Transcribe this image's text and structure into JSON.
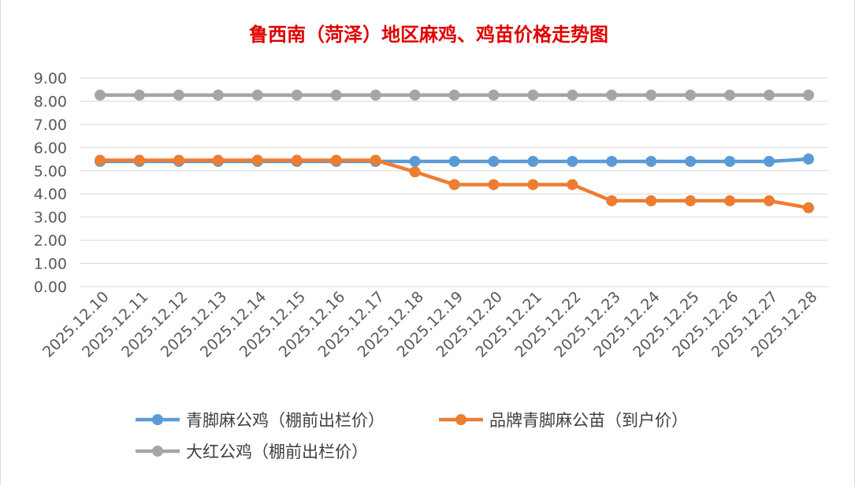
{
  "chart_data": {
    "type": "line",
    "title": "鲁西南（菏泽）地区麻鸡、鸡苗价格走势图",
    "categories": [
      "2025.12.10",
      "2025.12.11",
      "2025.12.12",
      "2025.12.13",
      "2025.12.14",
      "2025.12.15",
      "2025.12.16",
      "2025.12.17",
      "2025.12.18",
      "2025.12.19",
      "2025.12.20",
      "2025.12.21",
      "2025.12.22",
      "2025.12.23",
      "2025.12.24",
      "2025.12.25",
      "2025.12.26",
      "2025.12.27",
      "2025.12.28"
    ],
    "ylim": [
      0,
      9
    ],
    "yticks": [
      "0.00",
      "1.00",
      "2.00",
      "3.00",
      "4.00",
      "5.00",
      "6.00",
      "7.00",
      "8.00",
      "9.00"
    ],
    "grid": true,
    "legend_position": "bottom",
    "series": [
      {
        "name": "大红公鸡（棚前出栏价）",
        "color": "#a5a5a5",
        "values": [
          8.26,
          8.26,
          8.26,
          8.26,
          8.26,
          8.26,
          8.26,
          8.26,
          8.26,
          8.26,
          8.26,
          8.26,
          8.26,
          8.26,
          8.26,
          8.26,
          8.26,
          8.26,
          8.26
        ]
      },
      {
        "name": "青脚麻公鸡（棚前出栏价）",
        "color": "#5b9bd5",
        "values": [
          5.4,
          5.4,
          5.4,
          5.4,
          5.4,
          5.4,
          5.4,
          5.4,
          5.4,
          5.4,
          5.4,
          5.4,
          5.4,
          5.4,
          5.4,
          5.4,
          5.4,
          5.4,
          5.5
        ]
      },
      {
        "name": "品牌青脚麻公苗（到户价）",
        "color": "#ed7d31",
        "values": [
          5.45,
          5.45,
          5.45,
          5.45,
          5.45,
          5.45,
          5.45,
          5.45,
          4.95,
          4.4,
          4.4,
          4.4,
          4.4,
          3.7,
          3.7,
          3.7,
          3.7,
          3.7,
          3.4
        ]
      }
    ]
  }
}
